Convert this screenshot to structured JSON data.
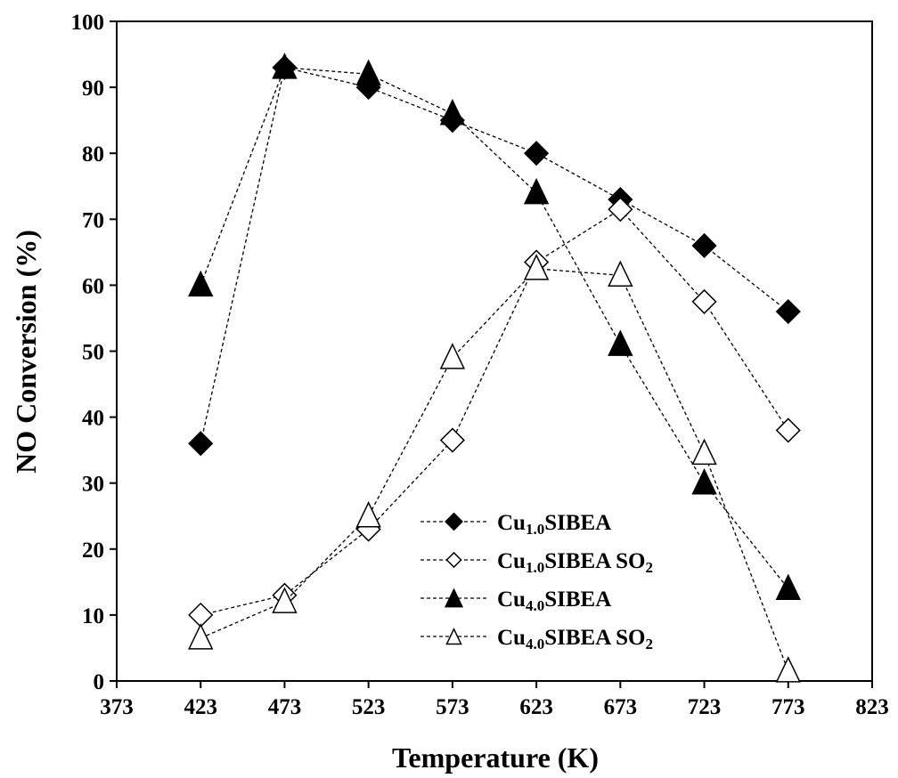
{
  "chart_data": {
    "type": "line",
    "xlabel": "Temperature (K)",
    "ylabel": "NO Conversion (%)",
    "xlim": [
      373,
      823
    ],
    "ylim": [
      0,
      100
    ],
    "xticks": [
      "373",
      "423",
      "473",
      "523",
      "573",
      "623",
      "673",
      "723",
      "773",
      "823"
    ],
    "yticks": [
      "0",
      "10",
      "20",
      "30",
      "40",
      "50",
      "60",
      "70",
      "80",
      "90",
      "100"
    ],
    "x": [
      423,
      473,
      523,
      573,
      623,
      673,
      723,
      773
    ],
    "legend_position": "bottom-right",
    "grid": false,
    "series": [
      {
        "name": "Cu1.0SIBEA",
        "label_main": "Cu",
        "label_sub": "1.0",
        "label_rest": "SIBEA",
        "label_sub2": "",
        "marker": "diamond",
        "filled": true,
        "values": [
          36,
          93,
          90,
          85,
          80,
          73,
          66,
          56
        ]
      },
      {
        "name": "Cu1.0SIBEA SO2",
        "label_main": "Cu",
        "label_sub": "1.0",
        "label_rest": "SIBEA SO",
        "label_sub2": "2",
        "marker": "diamond",
        "filled": false,
        "values": [
          10,
          13,
          23,
          36.5,
          63.5,
          71.5,
          57.5,
          38
        ]
      },
      {
        "name": "Cu4.0SIBEA",
        "label_main": "Cu",
        "label_sub": "4.0",
        "label_rest": "SIBEA",
        "label_sub2": "",
        "marker": "triangle",
        "filled": true,
        "values": [
          60,
          93,
          92,
          86,
          74,
          51,
          30,
          14
        ]
      },
      {
        "name": "Cu4.0SIBEA SO2",
        "label_main": "Cu",
        "label_sub": "4.0",
        "label_rest": "SIBEA SO",
        "label_sub2": "2",
        "marker": "triangle",
        "filled": false,
        "values": [
          6.5,
          12,
          25,
          49,
          62.5,
          61.5,
          34.5,
          1.5
        ]
      }
    ]
  }
}
